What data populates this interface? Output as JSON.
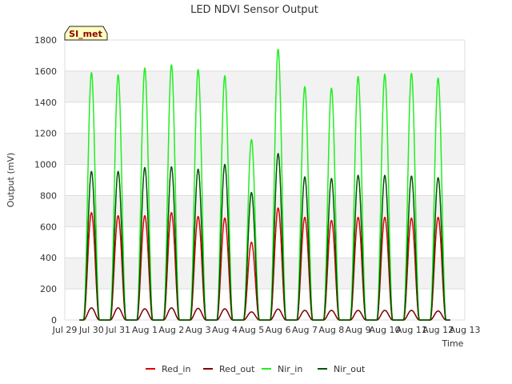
{
  "chart_data": {
    "type": "line",
    "title": "LED NDVI Sensor Output",
    "xlabel": "Time",
    "ylabel": "Output (mV)",
    "ylim": [
      0,
      1800
    ],
    "yticks": [
      0,
      200,
      400,
      600,
      800,
      1000,
      1200,
      1400,
      1600,
      1800
    ],
    "xlim": [
      0,
      15
    ],
    "xticks": [
      "Jul 29",
      "Jul 30",
      "Jul 31",
      "Aug 1",
      "Aug 2",
      "Aug 3",
      "Aug 4",
      "Aug 5",
      "Aug 6",
      "Aug 7",
      "Aug 8",
      "Aug 9",
      "Aug 10",
      "Aug 11",
      "Aug 12",
      "Aug 13"
    ],
    "grid": true,
    "legend_position": "bottom",
    "badge": "SI_met",
    "series": [
      {
        "name": "Red_in",
        "color": "#dd0000",
        "peaks": [
          690,
          670,
          670,
          690,
          665,
          655,
          500,
          720,
          660,
          640,
          660,
          660,
          655,
          660
        ]
      },
      {
        "name": "Red_out",
        "color": "#7a0000",
        "peaks": [
          78,
          78,
          72,
          78,
          75,
          72,
          52,
          70,
          62,
          62,
          62,
          62,
          62,
          58
        ]
      },
      {
        "name": "Nir_in",
        "color": "#22ee22",
        "peaks": [
          1590,
          1575,
          1620,
          1640,
          1610,
          1570,
          1160,
          1740,
          1500,
          1490,
          1565,
          1580,
          1585,
          1555
        ]
      },
      {
        "name": "Nir_out",
        "color": "#005500",
        "peaks": [
          955,
          955,
          980,
          985,
          970,
          1000,
          820,
          1070,
          920,
          910,
          930,
          930,
          925,
          915
        ]
      }
    ],
    "peak_days": [
      1,
      2,
      3,
      4,
      5,
      6,
      7,
      8,
      9,
      10,
      11,
      12,
      13,
      14
    ]
  }
}
